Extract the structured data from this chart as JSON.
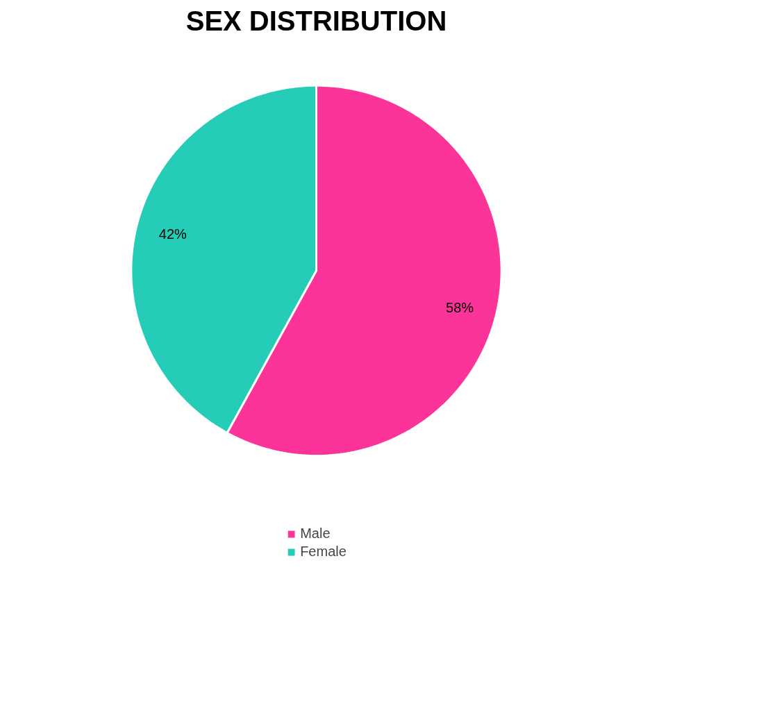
{
  "chart_data": {
    "type": "pie",
    "title": "SEX DISTRIBUTION",
    "categories": [
      "Male",
      "Female"
    ],
    "values": [
      58,
      42
    ],
    "colors": [
      "#fc3399",
      "#25ccb8"
    ],
    "value_labels": [
      "58%",
      "42%"
    ],
    "legend": "bottom"
  }
}
